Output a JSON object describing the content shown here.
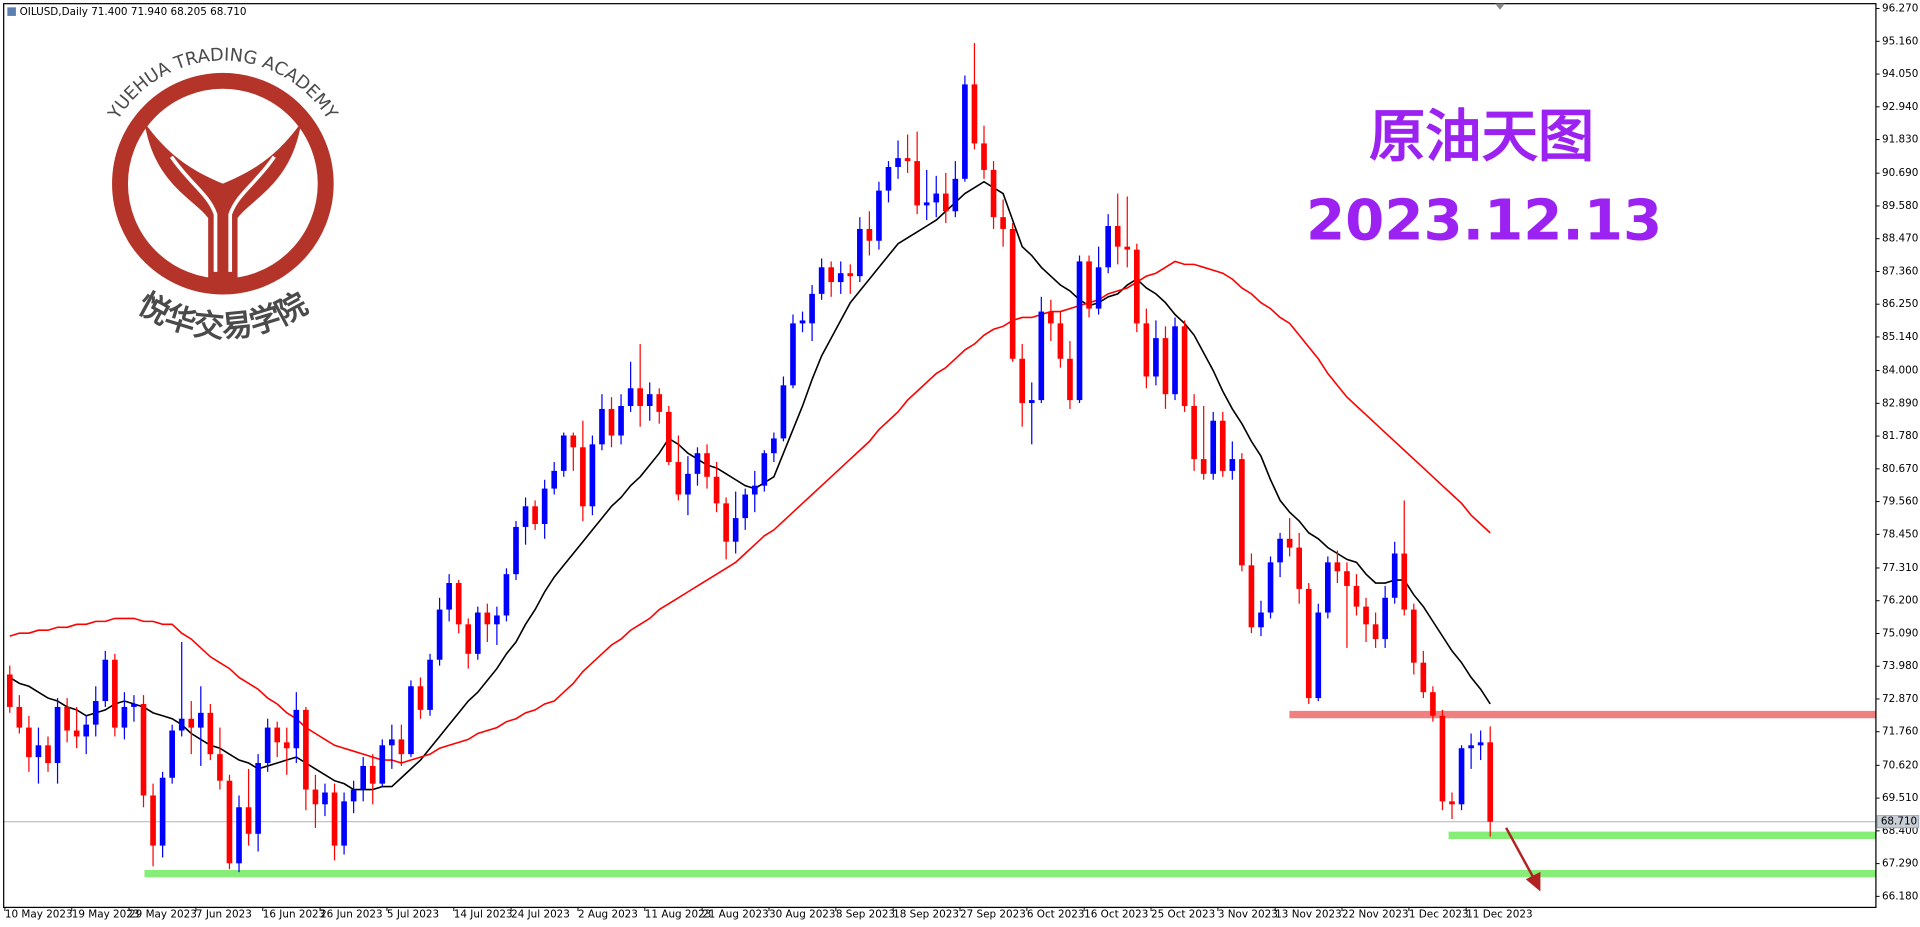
{
  "chart_data": {
    "type": "candlestick",
    "header": "OILUSD,Daily  71.400 71.940 68.205 68.710",
    "title": "原油天图",
    "subtitle": "2023.12.13",
    "logo": {
      "ring_text": "YUEHUA TRADING ACADEMY",
      "name": "悦华交易学院"
    },
    "up_color": "#0000ff",
    "down_color": "#ff0000",
    "categories": [
      "10 May 2023",
      null,
      null,
      null,
      null,
      null,
      null,
      "19 May 2023",
      null,
      null,
      null,
      null,
      null,
      "29 May 2023",
      null,
      null,
      null,
      null,
      null,
      null,
      "7 Jun 2023",
      null,
      null,
      null,
      null,
      null,
      null,
      "16 Jun 2023",
      null,
      null,
      null,
      null,
      null,
      "26 Jun 2023",
      null,
      null,
      null,
      null,
      null,
      null,
      "5 Jul 2023",
      null,
      null,
      null,
      null,
      null,
      null,
      "14 Jul 2023",
      null,
      null,
      null,
      null,
      null,
      "24 Jul 2023",
      null,
      null,
      null,
      null,
      null,
      null,
      "2 Aug 2023",
      null,
      null,
      null,
      null,
      null,
      null,
      "11 Aug 2023",
      null,
      null,
      null,
      null,
      null,
      "21 Aug 2023",
      null,
      null,
      null,
      null,
      null,
      null,
      "30 Aug 2023",
      null,
      null,
      null,
      null,
      null,
      null,
      "8 Sep 2023",
      null,
      null,
      null,
      null,
      null,
      "18 Sep 2023",
      null,
      null,
      null,
      null,
      null,
      null,
      "27 Sep 2023",
      null,
      null,
      null,
      null,
      null,
      null,
      "6 Oct 2023",
      null,
      null,
      null,
      null,
      null,
      "16 Oct 2023",
      null,
      null,
      null,
      null,
      null,
      null,
      "25 Oct 2023",
      null,
      null,
      null,
      null,
      null,
      null,
      "3 Nov 2023",
      null,
      null,
      null,
      null,
      null,
      "13 Nov 2023",
      null,
      null,
      null,
      null,
      null,
      null,
      "22 Nov 2023",
      null,
      null,
      null,
      null,
      null,
      null,
      "1 Dec 2023",
      null,
      null,
      null,
      null,
      null,
      "11 Dec 2023",
      null,
      null
    ],
    "open": [
      73.7,
      72.6,
      71.9,
      70.9,
      71.3,
      70.7,
      72.6,
      71.8,
      71.6,
      72.0,
      72.8,
      74.2,
      71.9,
      72.6,
      72.7,
      69.6,
      67.9,
      70.2,
      71.8,
      72.2,
      71.9,
      72.4,
      71.0,
      70.1,
      67.3,
      69.2,
      68.3,
      70.7,
      71.9,
      71.4,
      71.2,
      72.5,
      69.8,
      69.3,
      69.7,
      67.9,
      69.4,
      69.8,
      70.6,
      70.0,
      71.3,
      71.5,
      71.0,
      73.3,
      72.5,
      74.2,
      75.9,
      76.8,
      75.4,
      74.4,
      75.8,
      75.4,
      75.7,
      77.1,
      78.7,
      79.4,
      78.8,
      80.0,
      80.6,
      81.8,
      81.4,
      79.4,
      81.5,
      82.7,
      81.8,
      82.8,
      83.4,
      82.8,
      83.2,
      82.6,
      80.9,
      79.8,
      80.5,
      81.2,
      80.4,
      79.5,
      78.2,
      79.0,
      79.8,
      80.1,
      81.2,
      81.7,
      83.5,
      85.6,
      85.6,
      86.6,
      87.5,
      87.0,
      87.3,
      87.2,
      88.8,
      88.4,
      90.1,
      90.9,
      91.2,
      91.1,
      89.6,
      89.7,
      90.0,
      89.4,
      90.5,
      93.7,
      91.7,
      90.8,
      89.2,
      88.8,
      84.4,
      82.9,
      83.0,
      86.0,
      85.6,
      84.4,
      83.0,
      87.7,
      86.1,
      87.5,
      88.9,
      88.2,
      88.1,
      85.6,
      83.8,
      85.1,
      83.2,
      85.5,
      82.8,
      81.0,
      80.5,
      82.3,
      80.6,
      81.0,
      77.4,
      75.3,
      75.8,
      77.5,
      78.3,
      78.0,
      76.6,
      72.9,
      75.8,
      77.5,
      77.2,
      76.7,
      76.0,
      75.4,
      74.9,
      76.3,
      77.8,
      75.9,
      74.1,
      73.1,
      72.3,
      69.4,
      69.3,
      71.2,
      71.3,
      71.4
    ],
    "high": [
      74.0,
      73.0,
      72.3,
      71.9,
      71.6,
      72.9,
      72.9,
      72.6,
      72.3,
      73.3,
      74.5,
      74.4,
      73.1,
      73.0,
      73.0,
      70.0,
      70.4,
      72.0,
      74.8,
      72.8,
      73.3,
      72.7,
      71.9,
      70.3,
      69.6,
      70.5,
      71.0,
      72.2,
      72.1,
      71.9,
      73.1,
      72.6,
      70.3,
      70.0,
      70.0,
      69.7,
      70.1,
      70.9,
      71.0,
      71.5,
      72.0,
      72.0,
      73.5,
      73.6,
      74.4,
      76.3,
      77.1,
      76.9,
      75.6,
      76.0,
      76.1,
      76.0,
      77.3,
      78.9,
      79.7,
      79.6,
      80.3,
      80.9,
      81.9,
      81.9,
      82.3,
      81.8,
      83.2,
      83.1,
      83.2,
      84.3,
      84.9,
      83.6,
      83.4,
      82.8,
      81.8,
      81.1,
      81.4,
      81.5,
      80.9,
      79.7,
      79.9,
      80.0,
      80.6,
      81.3,
      81.9,
      83.8,
      85.9,
      86.0,
      86.9,
      87.8,
      87.7,
      87.7,
      87.6,
      89.2,
      89.4,
      90.4,
      91.1,
      91.8,
      92.0,
      92.1,
      90.8,
      90.6,
      90.7,
      91.1,
      94.0,
      95.1,
      92.3,
      91.1,
      89.8,
      89.0,
      84.9,
      83.6,
      86.5,
      86.4,
      86.0,
      85.0,
      87.9,
      87.9,
      88.2,
      89.3,
      90.0,
      89.9,
      88.3,
      86.1,
      85.7,
      85.5,
      85.8,
      85.7,
      83.2,
      82.8,
      82.6,
      82.6,
      81.6,
      81.2,
      77.8,
      76.2,
      77.7,
      78.5,
      79.0,
      78.5,
      76.8,
      76.1,
      77.7,
      77.9,
      77.5,
      77.1,
      76.3,
      75.8,
      76.7,
      78.2,
      79.6,
      76.1,
      74.5,
      73.3,
      72.5,
      69.7,
      71.3,
      71.7,
      71.8,
      71.94
    ],
    "low": [
      72.4,
      71.7,
      70.4,
      70.0,
      70.4,
      70.0,
      71.4,
      71.2,
      71.0,
      71.6,
      72.6,
      71.6,
      71.5,
      72.1,
      69.2,
      67.2,
      67.5,
      70.0,
      71.6,
      71.0,
      70.6,
      70.8,
      69.8,
      67.1,
      67.0,
      67.9,
      67.7,
      70.4,
      70.9,
      70.3,
      70.7,
      69.1,
      68.5,
      68.9,
      67.4,
      67.6,
      69.0,
      69.4,
      69.3,
      69.9,
      70.5,
      70.6,
      70.9,
      72.2,
      72.3,
      74.0,
      75.5,
      75.1,
      73.9,
      74.2,
      74.8,
      74.7,
      75.5,
      76.9,
      78.1,
      78.6,
      78.3,
      79.8,
      80.4,
      80.6,
      78.9,
      79.1,
      81.3,
      81.4,
      81.5,
      82.6,
      82.1,
      82.3,
      82.2,
      80.8,
      79.6,
      79.1,
      80.1,
      80.0,
      79.2,
      77.6,
      77.8,
      78.6,
      79.2,
      79.9,
      80.9,
      81.6,
      83.4,
      85.3,
      85.0,
      86.4,
      86.5,
      86.6,
      86.6,
      87.0,
      87.9,
      88.1,
      89.7,
      90.5,
      90.7,
      89.3,
      89.1,
      89.2,
      89.0,
      89.2,
      90.4,
      91.5,
      90.5,
      88.8,
      88.2,
      84.3,
      82.1,
      81.5,
      82.9,
      85.0,
      84.1,
      82.7,
      82.9,
      85.8,
      85.9,
      87.3,
      87.6,
      87.5,
      85.3,
      83.4,
      83.5,
      82.7,
      83.0,
      82.6,
      80.6,
      80.3,
      80.3,
      80.4,
      80.3,
      77.2,
      75.1,
      75.0,
      75.6,
      77.0,
      77.7,
      76.1,
      72.7,
      72.8,
      75.6,
      76.8,
      74.6,
      75.7,
      74.8,
      74.6,
      74.6,
      76.1,
      75.7,
      73.7,
      72.9,
      72.1,
      69.1,
      68.8,
      69.1,
      70.5,
      70.8,
      68.205
    ],
    "close": [
      72.6,
      71.9,
      70.9,
      71.3,
      70.7,
      72.6,
      71.8,
      71.6,
      72.0,
      72.8,
      74.2,
      71.9,
      72.6,
      72.7,
      69.6,
      67.9,
      70.2,
      71.8,
      72.2,
      71.9,
      72.4,
      71.0,
      70.1,
      67.3,
      69.2,
      68.3,
      70.7,
      71.9,
      71.4,
      71.2,
      72.5,
      69.8,
      69.3,
      69.7,
      67.9,
      69.4,
      69.8,
      70.6,
      70.0,
      71.3,
      71.5,
      71.0,
      73.3,
      72.5,
      74.2,
      75.9,
      76.8,
      75.4,
      74.4,
      75.8,
      75.4,
      75.7,
      77.1,
      78.7,
      79.4,
      78.8,
      80.0,
      80.6,
      81.8,
      81.4,
      79.4,
      81.5,
      82.7,
      81.8,
      82.8,
      83.4,
      82.8,
      83.2,
      82.6,
      80.9,
      79.8,
      80.5,
      81.2,
      80.4,
      79.5,
      78.2,
      79.0,
      79.8,
      80.1,
      81.2,
      81.7,
      83.5,
      85.6,
      85.7,
      86.6,
      87.5,
      87.0,
      87.3,
      87.2,
      88.8,
      88.4,
      90.1,
      90.9,
      91.2,
      91.1,
      89.6,
      89.7,
      90.0,
      89.4,
      90.5,
      93.7,
      91.7,
      90.8,
      89.2,
      88.8,
      84.4,
      82.9,
      83.0,
      86.0,
      85.6,
      84.4,
      83.0,
      87.7,
      86.1,
      87.5,
      88.9,
      88.2,
      88.1,
      85.6,
      83.8,
      85.1,
      83.2,
      85.5,
      82.8,
      81.0,
      80.5,
      82.3,
      80.6,
      81.0,
      77.4,
      75.3,
      75.8,
      77.5,
      78.3,
      78.0,
      76.6,
      72.9,
      75.8,
      77.5,
      77.2,
      76.7,
      76.0,
      75.4,
      74.9,
      76.3,
      77.8,
      75.9,
      74.1,
      73.1,
      72.3,
      69.4,
      69.3,
      71.2,
      71.3,
      71.4,
      68.71
    ],
    "moving_averages": [
      {
        "color": "#000000",
        "values": [
          73.6,
          73.4,
          73.3,
          73.1,
          72.9,
          72.8,
          72.6,
          72.5,
          72.3,
          72.4,
          72.5,
          72.7,
          72.8,
          72.7,
          72.6,
          72.4,
          72.3,
          72.2,
          72.0,
          71.7,
          71.5,
          71.3,
          71.2,
          71.0,
          70.8,
          70.7,
          70.5,
          70.6,
          70.7,
          70.8,
          70.9,
          70.7,
          70.5,
          70.3,
          70.1,
          70.0,
          69.8,
          69.8,
          69.8,
          69.9,
          69.9,
          70.2,
          70.5,
          70.8,
          71.2,
          71.6,
          72.0,
          72.4,
          72.8,
          73.1,
          73.5,
          73.9,
          74.4,
          74.8,
          75.4,
          75.9,
          76.5,
          77.0,
          77.4,
          77.8,
          78.2,
          78.6,
          79.0,
          79.4,
          79.7,
          80.1,
          80.4,
          80.8,
          81.2,
          81.7,
          81.5,
          81.2,
          81.0,
          80.8,
          80.7,
          80.5,
          80.3,
          80.1,
          80.0,
          80.2,
          80.4,
          81.2,
          82.0,
          82.8,
          83.7,
          84.5,
          85.1,
          85.7,
          86.3,
          86.7,
          87.1,
          87.5,
          87.9,
          88.3,
          88.5,
          88.7,
          88.9,
          89.1,
          89.4,
          89.7,
          90.0,
          90.2,
          90.4,
          90.2,
          90.0,
          89.1,
          88.2,
          87.9,
          87.5,
          87.2,
          86.9,
          86.7,
          86.4,
          86.2,
          86.3,
          86.5,
          86.6,
          86.9,
          87.1,
          86.8,
          86.6,
          86.3,
          85.9,
          85.6,
          85.2,
          84.6,
          84.0,
          83.3,
          82.7,
          82.2,
          81.6,
          81.1,
          80.3,
          79.6,
          79.2,
          78.9,
          78.5,
          78.3,
          78.0,
          77.8,
          77.6,
          77.5,
          77.1,
          76.8,
          76.8,
          76.9,
          76.9,
          76.4,
          76.0,
          75.5,
          75.0,
          74.5,
          74.1,
          73.6,
          73.2,
          72.7
        ]
      },
      {
        "color": "#ff0000",
        "values": [
          75.0,
          75.1,
          75.1,
          75.2,
          75.2,
          75.3,
          75.3,
          75.4,
          75.4,
          75.5,
          75.5,
          75.6,
          75.6,
          75.6,
          75.5,
          75.5,
          75.4,
          75.4,
          75.1,
          74.9,
          74.6,
          74.3,
          74.1,
          73.9,
          73.6,
          73.4,
          73.2,
          72.9,
          72.7,
          72.4,
          72.2,
          71.9,
          71.7,
          71.5,
          71.3,
          71.2,
          71.1,
          71.0,
          70.9,
          70.8,
          70.8,
          70.7,
          70.8,
          70.9,
          71.0,
          71.2,
          71.3,
          71.4,
          71.5,
          71.7,
          71.8,
          71.9,
          72.1,
          72.2,
          72.4,
          72.5,
          72.7,
          72.8,
          73.1,
          73.4,
          73.8,
          74.1,
          74.4,
          74.7,
          74.9,
          75.2,
          75.4,
          75.6,
          75.9,
          76.1,
          76.3,
          76.5,
          76.7,
          76.9,
          77.1,
          77.3,
          77.5,
          77.8,
          78.1,
          78.4,
          78.6,
          78.9,
          79.2,
          79.5,
          79.8,
          80.1,
          80.4,
          80.7,
          81.0,
          81.3,
          81.6,
          82.0,
          82.3,
          82.6,
          83.0,
          83.3,
          83.6,
          83.9,
          84.1,
          84.4,
          84.7,
          84.9,
          85.2,
          85.4,
          85.5,
          85.7,
          85.8,
          85.8,
          85.9,
          86.0,
          86.0,
          86.1,
          86.2,
          86.3,
          86.4,
          86.6,
          86.7,
          86.8,
          87.0,
          87.2,
          87.3,
          87.5,
          87.7,
          87.6,
          87.6,
          87.5,
          87.4,
          87.3,
          87.1,
          86.8,
          86.6,
          86.3,
          86.1,
          85.8,
          85.6,
          85.2,
          84.8,
          84.4,
          83.9,
          83.5,
          83.1,
          82.8,
          82.5,
          82.2,
          81.9,
          81.6,
          81.3,
          81.0,
          80.7,
          80.4,
          80.1,
          79.8,
          79.5,
          79.1,
          78.8,
          78.5
        ]
      }
    ],
    "levels": [
      {
        "value": 72.34,
        "color": "#f08080"
      },
      {
        "value": 68.25,
        "color": "#86ee76"
      },
      {
        "value": 66.95,
        "color": "#86ee76"
      }
    ],
    "last_price": {
      "value": 68.71,
      "label": "68.710"
    },
    "ylim": [
      65.93,
      96.56
    ],
    "yticks": [
      {
        "value": 96.27,
        "label": "96.270"
      },
      {
        "value": 95.16,
        "label": "95.160"
      },
      {
        "value": 94.05,
        "label": "94.050"
      },
      {
        "value": 92.94,
        "label": "92.940"
      },
      {
        "value": 91.83,
        "label": "91.830"
      },
      {
        "value": 90.69,
        "label": "90.690"
      },
      {
        "value": 89.58,
        "label": "89.580"
      },
      {
        "value": 88.47,
        "label": "88.470"
      },
      {
        "value": 87.36,
        "label": "87.360"
      },
      {
        "value": 86.25,
        "label": "86.250"
      },
      {
        "value": 85.14,
        "label": "85.140"
      },
      {
        "value": 84.0,
        "label": "84.000"
      },
      {
        "value": 82.89,
        "label": "82.890"
      },
      {
        "value": 81.78,
        "label": "81.780"
      },
      {
        "value": 80.67,
        "label": "80.670"
      },
      {
        "value": 79.56,
        "label": "79.560"
      },
      {
        "value": 78.45,
        "label": "78.450"
      },
      {
        "value": 77.31,
        "label": "77.310"
      },
      {
        "value": 76.2,
        "label": "76.200"
      },
      {
        "value": 75.09,
        "label": "75.090"
      },
      {
        "value": 73.98,
        "label": "73.980"
      },
      {
        "value": 72.87,
        "label": "72.870"
      },
      {
        "value": 71.76,
        "label": "71.760"
      },
      {
        "value": 70.62,
        "label": "70.620"
      },
      {
        "value": 69.51,
        "label": "69.510"
      },
      {
        "value": 68.4,
        "label": "68.400"
      },
      {
        "value": 67.29,
        "label": "67.290"
      },
      {
        "value": 66.18,
        "label": "66.180"
      }
    ]
  }
}
